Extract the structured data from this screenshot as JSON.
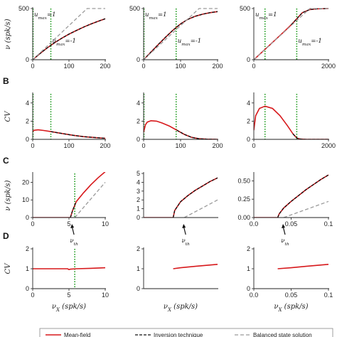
{
  "colors": {
    "red": "#d7191c",
    "black": "#111111",
    "gray": "#9a9a9a",
    "green": "#1a9a1a"
  },
  "rows": [
    {
      "letter": "",
      "ylabel": "ν (spk/s)"
    },
    {
      "letter": "B",
      "ylabel": "CV"
    },
    {
      "letter": "C",
      "ylabel": "ν (spk/s)"
    },
    {
      "letter": "D",
      "ylabel": "CV"
    }
  ],
  "xlabel": "ν_X (spk/s)",
  "annotations": {
    "umax_pos": "u_max=1",
    "umax_neg": "u_max=-1",
    "vth": "ν_th"
  },
  "legend": {
    "items": [
      {
        "label": "Mean-field",
        "style": "solid-red"
      },
      {
        "label": "Inversion technique",
        "style": "dashed-black"
      },
      {
        "label": "Balanced state solution",
        "style": "dashed-gray"
      }
    ]
  },
  "chart_data": [
    {
      "panel": "A1",
      "type": "line",
      "xlim": [
        0,
        200
      ],
      "ylim": [
        0,
        500
      ],
      "xticks": [
        0,
        100,
        200
      ],
      "yticks": [
        0,
        500
      ],
      "ylabel": "ν (spk/s)",
      "green_lines": [
        1,
        50
      ],
      "series": [
        {
          "style": "red",
          "x": [
            0,
            20,
            40,
            60,
            80,
            100,
            120,
            140,
            160,
            180,
            200
          ],
          "y": [
            0,
            60,
            115,
            165,
            210,
            250,
            285,
            318,
            348,
            375,
            400
          ]
        },
        {
          "style": "black",
          "x": [
            0,
            20,
            40,
            60,
            80,
            100,
            120,
            140,
            160,
            180,
            200
          ],
          "y": [
            0,
            60,
            115,
            165,
            210,
            250,
            285,
            318,
            348,
            375,
            400
          ]
        },
        {
          "style": "gray",
          "x": [
            0,
            150,
            200
          ],
          "y": [
            0,
            500,
            500
          ]
        }
      ]
    },
    {
      "panel": "A2",
      "type": "line",
      "xlim": [
        0,
        200
      ],
      "ylim": [
        0,
        500
      ],
      "xticks": [
        0,
        100,
        200
      ],
      "yticks": [
        0,
        500
      ],
      "green_lines": [
        1,
        88
      ],
      "series": [
        {
          "style": "red",
          "x": [
            0,
            20,
            40,
            60,
            80,
            100,
            120,
            140,
            160,
            180,
            200
          ],
          "y": [
            0,
            75,
            150,
            222,
            290,
            350,
            395,
            425,
            445,
            460,
            470
          ]
        },
        {
          "style": "black",
          "x": [
            0,
            20,
            40,
            60,
            80,
            100,
            120,
            140,
            160,
            180,
            200
          ],
          "y": [
            0,
            75,
            150,
            222,
            290,
            350,
            395,
            425,
            445,
            460,
            470
          ]
        },
        {
          "style": "gray",
          "x": [
            0,
            150,
            200
          ],
          "y": [
            0,
            500,
            500
          ]
        }
      ]
    },
    {
      "panel": "A3",
      "type": "line",
      "xlim": [
        0,
        2000
      ],
      "ylim": [
        0,
        500
      ],
      "xticks": [
        0,
        2000
      ],
      "yticks": [
        0,
        500
      ],
      "green_lines": [
        300,
        1150
      ],
      "series": [
        {
          "style": "red",
          "x": [
            0,
            400,
            800,
            1000,
            1150,
            1300,
            1500,
            1700,
            2000
          ],
          "y": [
            0,
            135,
            270,
            340,
            400,
            460,
            490,
            497,
            500
          ]
        },
        {
          "style": "black",
          "x": [
            1000,
            1150,
            1300,
            1500,
            1700,
            2000
          ],
          "y": [
            340,
            400,
            460,
            490,
            497,
            500
          ]
        },
        {
          "style": "gray",
          "x": [
            0,
            1500,
            2000
          ],
          "y": [
            0,
            500,
            500
          ]
        }
      ]
    },
    {
      "panel": "B1",
      "type": "line",
      "xlim": [
        0,
        200
      ],
      "ylim": [
        0,
        5
      ],
      "xticks": [
        0,
        100,
        200
      ],
      "yticks": [
        0,
        2,
        4
      ],
      "ylabel": "CV",
      "green_lines": [
        1,
        50
      ],
      "series": [
        {
          "style": "red",
          "x": [
            0,
            5,
            15,
            30,
            50,
            80,
            110,
            140,
            170,
            200
          ],
          "y": [
            0.9,
            1.0,
            1.05,
            0.98,
            0.85,
            0.65,
            0.45,
            0.3,
            0.2,
            0.12
          ]
        },
        {
          "style": "black",
          "x": [
            50,
            80,
            110,
            140,
            170,
            200
          ],
          "y": [
            0.85,
            0.65,
            0.45,
            0.3,
            0.2,
            0.12
          ]
        }
      ]
    },
    {
      "panel": "B2",
      "type": "line",
      "xlim": [
        0,
        200
      ],
      "ylim": [
        0,
        5
      ],
      "xticks": [
        0,
        100,
        200
      ],
      "yticks": [
        0,
        2,
        4
      ],
      "green_lines": [
        1,
        88
      ],
      "series": [
        {
          "style": "red",
          "x": [
            0,
            5,
            10,
            20,
            35,
            50,
            70,
            90,
            110,
            130,
            150,
            170,
            200
          ],
          "y": [
            0.8,
            1.6,
            1.9,
            2.05,
            2.0,
            1.8,
            1.45,
            1.0,
            0.55,
            0.22,
            0.07,
            0.02,
            0.0
          ]
        },
        {
          "style": "black",
          "x": [
            90,
            110,
            130,
            150,
            170,
            200
          ],
          "y": [
            1.0,
            0.55,
            0.22,
            0.07,
            0.02,
            0.0
          ]
        }
      ]
    },
    {
      "panel": "B3",
      "type": "line",
      "xlim": [
        0,
        2000
      ],
      "ylim": [
        0,
        5
      ],
      "xticks": [
        0,
        2000
      ],
      "yticks": [
        0,
        2,
        4
      ],
      "green_lines": [
        300,
        1150
      ],
      "series": [
        {
          "style": "red",
          "x": [
            0,
            50,
            150,
            300,
            500,
            700,
            900,
            1050,
            1150,
            1250,
            1400,
            2000
          ],
          "y": [
            1.0,
            2.6,
            3.4,
            3.65,
            3.4,
            2.6,
            1.5,
            0.6,
            0.15,
            0.03,
            0.0,
            0.0
          ]
        },
        {
          "style": "black",
          "x": [
            1050,
            1150,
            1250,
            1400,
            2000
          ],
          "y": [
            0.6,
            0.15,
            0.03,
            0.0,
            0.0
          ]
        }
      ]
    },
    {
      "panel": "C1",
      "type": "line",
      "xlim": [
        0,
        10
      ],
      "ylim": [
        0,
        25
      ],
      "xticks": [
        0,
        5,
        10
      ],
      "yticks": [
        0,
        10,
        20
      ],
      "ylabel": "ν (spk/s)",
      "green_lines": [
        5.8
      ],
      "series": [
        {
          "style": "red",
          "x": [
            0,
            5.2,
            5.5,
            6,
            7,
            8,
            9,
            10
          ],
          "y": [
            0,
            0,
            4,
            9,
            14,
            18.5,
            22.5,
            26
          ]
        },
        {
          "style": "black",
          "x": [
            5.2,
            5.5,
            6
          ],
          "y": [
            0,
            4,
            9
          ]
        },
        {
          "style": "gray",
          "x": [
            5.8,
            10
          ],
          "y": [
            0,
            20
          ]
        }
      ]
    },
    {
      "panel": "C2",
      "type": "line",
      "xlim": [
        0,
        1
      ],
      "ylim": [
        0,
        5
      ],
      "xticks": [],
      "yticks": [
        0,
        1,
        2,
        3,
        4,
        5
      ],
      "series": [
        {
          "style": "red",
          "x": [
            0,
            0.4,
            0.42,
            0.5,
            0.6,
            0.7,
            0.8,
            0.9,
            1.0
          ],
          "y": [
            0,
            0,
            0.8,
            1.8,
            2.5,
            3.1,
            3.6,
            4.1,
            4.5
          ]
        },
        {
          "style": "black",
          "x": [
            0.4,
            0.42,
            0.5,
            0.6,
            0.7,
            0.8,
            0.9,
            1.0
          ],
          "y": [
            0,
            0.8,
            1.8,
            2.5,
            3.1,
            3.6,
            4.1,
            4.5
          ]
        },
        {
          "style": "gray",
          "x": [
            0.55,
            1.0
          ],
          "y": [
            0,
            2.0
          ]
        }
      ]
    },
    {
      "panel": "C3",
      "type": "line",
      "xlim": [
        0,
        0.1
      ],
      "ylim": [
        0,
        0.6
      ],
      "xticks": [
        0.0,
        0.05,
        0.1
      ],
      "yticks": [
        0.0,
        0.25,
        0.5
      ],
      "series": [
        {
          "style": "red",
          "x": [
            0,
            0.032,
            0.034,
            0.04,
            0.05,
            0.06,
            0.07,
            0.08,
            0.09,
            0.1
          ],
          "y": [
            0,
            0,
            0.05,
            0.13,
            0.22,
            0.3,
            0.38,
            0.45,
            0.52,
            0.58
          ]
        },
        {
          "style": "black",
          "x": [
            0.032,
            0.034,
            0.04,
            0.05,
            0.06,
            0.07,
            0.08,
            0.09,
            0.1
          ],
          "y": [
            0,
            0.05,
            0.13,
            0.22,
            0.3,
            0.38,
            0.45,
            0.52,
            0.58
          ]
        },
        {
          "style": "gray",
          "x": [
            0.04,
            0.1
          ],
          "y": [
            0,
            0.22
          ]
        }
      ]
    },
    {
      "panel": "D1",
      "type": "line",
      "xlim": [
        0,
        10
      ],
      "ylim": [
        0,
        2
      ],
      "xticks": [
        0,
        5,
        10
      ],
      "yticks": [
        0,
        1,
        2
      ],
      "ylabel": "CV",
      "green_lines": [
        5.8
      ],
      "series": [
        {
          "style": "red",
          "x": [
            0,
            2,
            4.8,
            5.0,
            5.2,
            6,
            8,
            10
          ],
          "y": [
            1.0,
            1.0,
            1.0,
            0.96,
            0.98,
            1.0,
            1.02,
            1.05
          ]
        }
      ]
    },
    {
      "panel": "D2",
      "type": "line",
      "xlim": [
        0,
        1
      ],
      "ylim": [
        0,
        2
      ],
      "xticks": [],
      "yticks": [
        0,
        1,
        2
      ],
      "series": [
        {
          "style": "red",
          "x": [
            0.4,
            0.5,
            0.7,
            1.0
          ],
          "y": [
            1.0,
            1.05,
            1.12,
            1.22
          ]
        }
      ]
    },
    {
      "panel": "D3",
      "type": "line",
      "xlim": [
        0,
        0.1
      ],
      "ylim": [
        0,
        2
      ],
      "xticks": [
        0.0,
        0.05,
        0.1
      ],
      "yticks": [
        0,
        1,
        2
      ],
      "series": [
        {
          "style": "red",
          "x": [
            0.032,
            0.05,
            0.07,
            0.1
          ],
          "y": [
            1.0,
            1.05,
            1.12,
            1.22
          ]
        }
      ]
    }
  ]
}
